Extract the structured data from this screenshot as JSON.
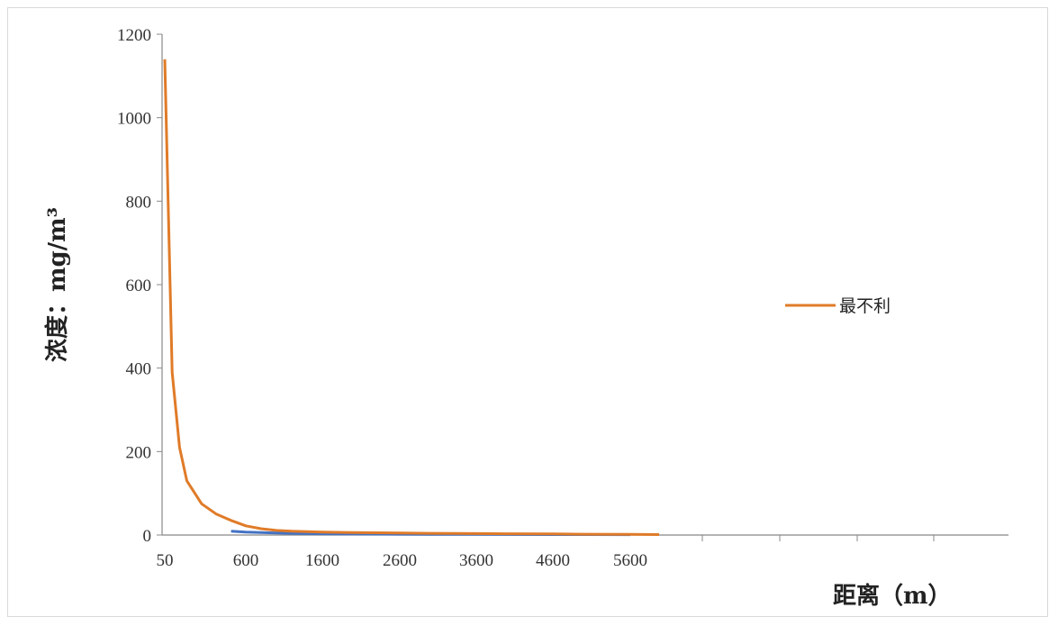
{
  "chart_data": {
    "type": "line",
    "title": "",
    "xlabel": "距离（m）",
    "ylabel": "浓度：mg/m³",
    "ylim": [
      0,
      1200
    ],
    "y_ticks": [
      "0",
      "200",
      "400",
      "600",
      "800",
      "1000",
      "1200"
    ],
    "x_ticks": [
      "50",
      "600",
      "1600",
      "2600",
      "3600",
      "4600",
      "5600"
    ],
    "grid": false,
    "legend_position": "right",
    "series": [
      {
        "name": "最不利",
        "color": "#E07B28",
        "x": [
          50,
          100,
          150,
          200,
          300,
          400,
          500,
          600,
          800,
          1000,
          1200,
          1600,
          2000,
          2600,
          3000,
          3600,
          4000,
          4600,
          5000,
          5600,
          6000
        ],
        "y": [
          1140,
          390,
          210,
          130,
          75,
          50,
          35,
          22,
          15,
          11,
          9,
          7,
          6,
          5,
          4,
          3.5,
          3,
          2.5,
          2,
          1.5,
          1
        ]
      },
      {
        "name": "",
        "color": "#4472C4",
        "x": [
          500,
          600,
          800,
          1000,
          1200,
          1600,
          2000,
          2600,
          3000,
          3600,
          4000,
          4600,
          5000,
          5600
        ],
        "y": [
          9,
          7,
          6,
          5,
          4,
          3,
          2.5,
          2,
          1.8,
          1.5,
          1.3,
          1.1,
          1,
          0.8
        ]
      }
    ]
  }
}
